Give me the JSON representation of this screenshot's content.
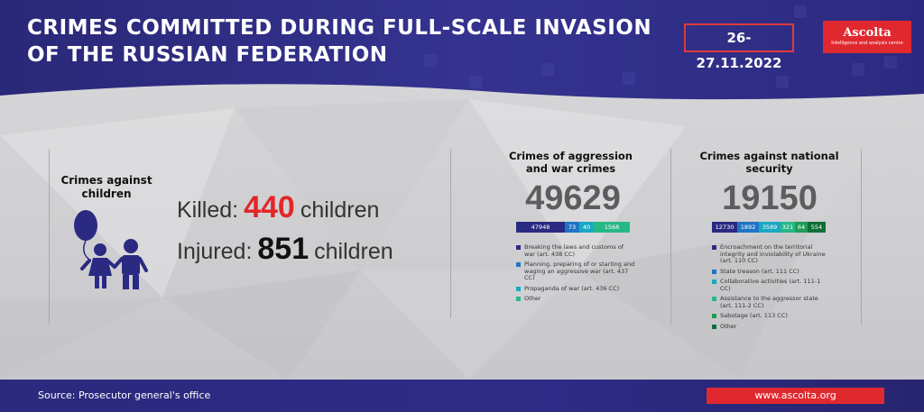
{
  "header": {
    "title": "CRIMES COMMITTED DURING FULL-SCALE INVASION OF THE RUSSIAN FEDERATION",
    "date": "26-27.11.2022",
    "logo": {
      "name": "Ascolta",
      "tagline": "Intelligence and analysis centre"
    }
  },
  "children": {
    "heading": "Crimes against children",
    "killed": {
      "label": "Killed:",
      "value": "440",
      "unit": "children"
    },
    "injured": {
      "label": "Injured:",
      "value": "851",
      "unit": "children"
    }
  },
  "aggression": {
    "heading": "Crimes of aggression and war crimes",
    "total": "49629",
    "segments": [
      {
        "value": "47948",
        "color": "#2b2a82"
      },
      {
        "value": "73",
        "color": "#1f74c4"
      },
      {
        "value": "40",
        "color": "#19a9c2"
      },
      {
        "value": "1568",
        "color": "#27b886"
      }
    ],
    "legend": [
      {
        "label": "Breaking the laws and customs of war (art. 438 CC)",
        "color": "#2b2a82"
      },
      {
        "label": "Planning, preparing of or starting and waging an aggressive war (art. 437 CC)",
        "color": "#1f74c4"
      },
      {
        "label": "Propaganda of war (art. 436 CC)",
        "color": "#19a9c2"
      },
      {
        "label": "Other",
        "color": "#27b886"
      }
    ]
  },
  "security": {
    "heading": "Crimes against national security",
    "total": "19150",
    "segments": [
      {
        "value": "12730",
        "color": "#2b2a82"
      },
      {
        "value": "1892",
        "color": "#1f74c4"
      },
      {
        "value": "3589",
        "color": "#19a9c2"
      },
      {
        "value": "321",
        "color": "#27b886"
      },
      {
        "value": "64",
        "color": "#1e9c58"
      },
      {
        "value": "554",
        "color": "#0f6e37"
      }
    ],
    "legend": [
      {
        "label": "Encroachment on the territorial integrity and inviolability of Ukraine (art. 110 CC)",
        "color": "#2b2a82"
      },
      {
        "label": "State treason (art. 111 CC)",
        "color": "#1f74c4"
      },
      {
        "label": "Collaborative activities (art. 111-1 CC)",
        "color": "#19a9c2"
      },
      {
        "label": "Assistance to the aggressor state (art. 111-2 CC)",
        "color": "#27b886"
      },
      {
        "label": "Sabotage (art. 113 CC)",
        "color": "#1e9c58"
      },
      {
        "label": "Other",
        "color": "#0f6e37"
      }
    ]
  },
  "footer": {
    "source": "Source: Prosecutor general's office",
    "website": "www.ascolta.org"
  }
}
